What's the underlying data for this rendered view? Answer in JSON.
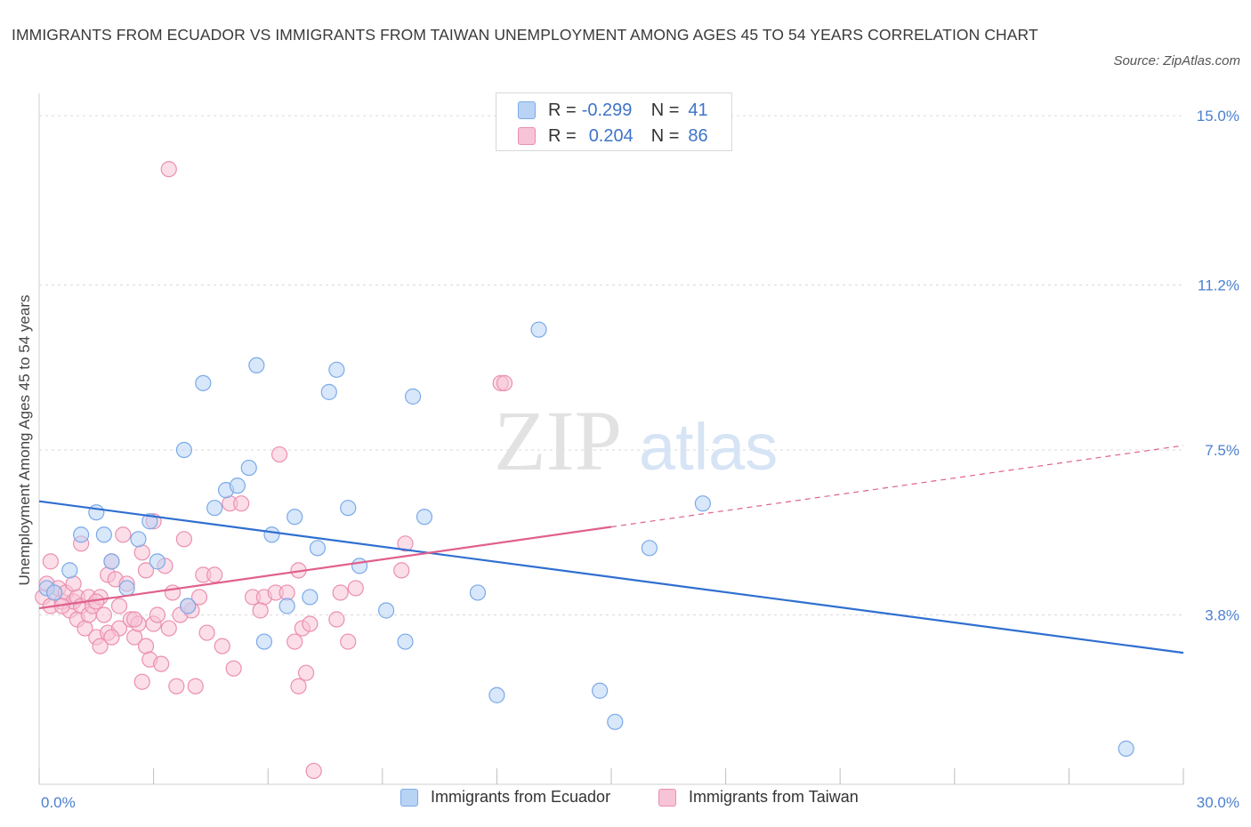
{
  "title": "IMMIGRANTS FROM ECUADOR VS IMMIGRANTS FROM TAIWAN UNEMPLOYMENT AMONG AGES 45 TO 54 YEARS CORRELATION CHART",
  "source": "Source: ZipAtlas.com",
  "watermark": {
    "zip": "ZIP",
    "atlas": "atlas"
  },
  "legend": {
    "r_label": "R =",
    "n_label": "N =",
    "rows": [
      {
        "r": "-0.299",
        "n": "41"
      },
      {
        "r": "0.204",
        "n": "86"
      }
    ]
  },
  "chart_data": {
    "type": "scatter",
    "title": "IMMIGRANTS FROM ECUADOR VS IMMIGRANTS FROM TAIWAN UNEMPLOYMENT AMONG AGES 45 TO 54 YEARS CORRELATION CHART",
    "xlabel": "",
    "ylabel": "Unemployment Among Ages 45 to 54 years",
    "xlim": [
      0,
      30
    ],
    "ylim": [
      0,
      15.5
    ],
    "x_tick_labels": [
      {
        "value": 0,
        "label": "0.0%"
      },
      {
        "value": 30,
        "label": "30.0%"
      }
    ],
    "y_tick_labels": [
      {
        "value": 15.0,
        "label": "15.0%"
      },
      {
        "value": 11.2,
        "label": "11.2%"
      },
      {
        "value": 7.5,
        "label": "7.5%"
      },
      {
        "value": 3.8,
        "label": "3.8%"
      }
    ],
    "grid": true,
    "legend_placement": "top-center",
    "series": [
      {
        "name": "Immigrants from Ecuador",
        "color": "#7aaae8",
        "fill": "#b9d3f5",
        "trend": {
          "x": [
            0,
            30
          ],
          "y": [
            6.35,
            2.95
          ],
          "dashed_from": null
        },
        "points": [
          [
            0.2,
            4.4
          ],
          [
            0.4,
            4.3
          ],
          [
            0.8,
            4.8
          ],
          [
            1.1,
            5.6
          ],
          [
            1.5,
            6.1
          ],
          [
            1.7,
            5.6
          ],
          [
            1.9,
            5.0
          ],
          [
            2.3,
            4.4
          ],
          [
            2.6,
            5.5
          ],
          [
            2.9,
            5.9
          ],
          [
            3.1,
            5.0
          ],
          [
            3.9,
            4.0
          ],
          [
            3.8,
            7.5
          ],
          [
            4.3,
            9.0
          ],
          [
            4.6,
            6.2
          ],
          [
            4.9,
            6.6
          ],
          [
            5.2,
            6.7
          ],
          [
            5.5,
            7.1
          ],
          [
            5.7,
            9.4
          ],
          [
            5.9,
            3.2
          ],
          [
            6.1,
            5.6
          ],
          [
            6.5,
            4.0
          ],
          [
            6.7,
            6.0
          ],
          [
            7.1,
            4.2
          ],
          [
            7.3,
            5.3
          ],
          [
            7.6,
            8.8
          ],
          [
            7.8,
            9.3
          ],
          [
            8.1,
            6.2
          ],
          [
            8.4,
            4.9
          ],
          [
            9.1,
            3.9
          ],
          [
            9.6,
            3.2
          ],
          [
            9.8,
            8.7
          ],
          [
            10.1,
            6.0
          ],
          [
            11.5,
            4.3
          ],
          [
            12.0,
            2.0
          ],
          [
            13.1,
            10.2
          ],
          [
            14.7,
            2.1
          ],
          [
            15.1,
            1.4
          ],
          [
            16.0,
            5.3
          ],
          [
            17.4,
            6.3
          ],
          [
            28.5,
            0.8
          ]
        ]
      },
      {
        "name": "Immigrants from Taiwan",
        "color": "#eb8fb0",
        "fill": "#f7c3d6",
        "trend": {
          "x": [
            0,
            30
          ],
          "y": [
            3.95,
            7.6
          ],
          "dashed_from": 15.0
        },
        "points": [
          [
            0.1,
            4.2
          ],
          [
            0.2,
            4.5
          ],
          [
            0.3,
            4.0
          ],
          [
            0.3,
            5.0
          ],
          [
            0.4,
            4.3
          ],
          [
            0.5,
            4.4
          ],
          [
            0.6,
            4.1
          ],
          [
            0.7,
            4.3
          ],
          [
            0.8,
            3.9
          ],
          [
            0.9,
            4.1
          ],
          [
            1.0,
            4.2
          ],
          [
            1.0,
            3.7
          ],
          [
            1.1,
            5.4
          ],
          [
            1.1,
            4.0
          ],
          [
            1.2,
            3.5
          ],
          [
            1.3,
            4.2
          ],
          [
            1.3,
            3.8
          ],
          [
            1.4,
            4.0
          ],
          [
            1.5,
            3.3
          ],
          [
            1.6,
            3.1
          ],
          [
            1.6,
            4.2
          ],
          [
            1.7,
            3.8
          ],
          [
            1.8,
            3.4
          ],
          [
            1.8,
            4.7
          ],
          [
            1.9,
            5.0
          ],
          [
            2.0,
            4.6
          ],
          [
            2.1,
            3.5
          ],
          [
            2.1,
            4.0
          ],
          [
            2.2,
            5.6
          ],
          [
            2.3,
            4.5
          ],
          [
            2.4,
            3.7
          ],
          [
            2.5,
            3.3
          ],
          [
            2.6,
            3.6
          ],
          [
            2.7,
            5.2
          ],
          [
            2.8,
            3.1
          ],
          [
            2.8,
            4.8
          ],
          [
            2.9,
            2.8
          ],
          [
            3.0,
            3.6
          ],
          [
            3.0,
            5.9
          ],
          [
            3.1,
            3.8
          ],
          [
            3.2,
            2.7
          ],
          [
            3.3,
            4.9
          ],
          [
            3.4,
            3.5
          ],
          [
            3.5,
            4.3
          ],
          [
            3.6,
            2.2
          ],
          [
            3.7,
            3.8
          ],
          [
            3.8,
            5.5
          ],
          [
            4.0,
            3.9
          ],
          [
            4.1,
            2.2
          ],
          [
            4.3,
            4.7
          ],
          [
            4.4,
            3.4
          ],
          [
            4.6,
            4.7
          ],
          [
            4.8,
            3.1
          ],
          [
            5.0,
            6.3
          ],
          [
            5.1,
            2.6
          ],
          [
            5.3,
            6.3
          ],
          [
            5.6,
            4.2
          ],
          [
            5.9,
            4.2
          ],
          [
            6.2,
            4.3
          ],
          [
            6.3,
            7.4
          ],
          [
            6.5,
            4.3
          ],
          [
            6.7,
            3.2
          ],
          [
            6.8,
            2.2
          ],
          [
            6.9,
            3.5
          ],
          [
            7.0,
            2.5
          ],
          [
            7.1,
            3.6
          ],
          [
            7.2,
            0.3
          ],
          [
            6.8,
            4.8
          ],
          [
            7.8,
            3.7
          ],
          [
            7.9,
            4.3
          ],
          [
            8.1,
            3.2
          ],
          [
            8.3,
            4.4
          ],
          [
            9.5,
            4.8
          ],
          [
            9.6,
            5.4
          ],
          [
            12.1,
            9.0
          ],
          [
            12.2,
            9.0
          ],
          [
            3.4,
            13.8
          ],
          [
            1.5,
            4.1
          ],
          [
            0.6,
            4.0
          ],
          [
            2.7,
            2.3
          ],
          [
            3.9,
            4.0
          ],
          [
            1.9,
            3.3
          ],
          [
            2.5,
            3.7
          ],
          [
            0.9,
            4.5
          ],
          [
            4.2,
            4.2
          ],
          [
            5.8,
            3.9
          ]
        ]
      }
    ]
  },
  "bottom_legend": [
    "Immigrants from Ecuador",
    "Immigrants from Taiwan"
  ]
}
